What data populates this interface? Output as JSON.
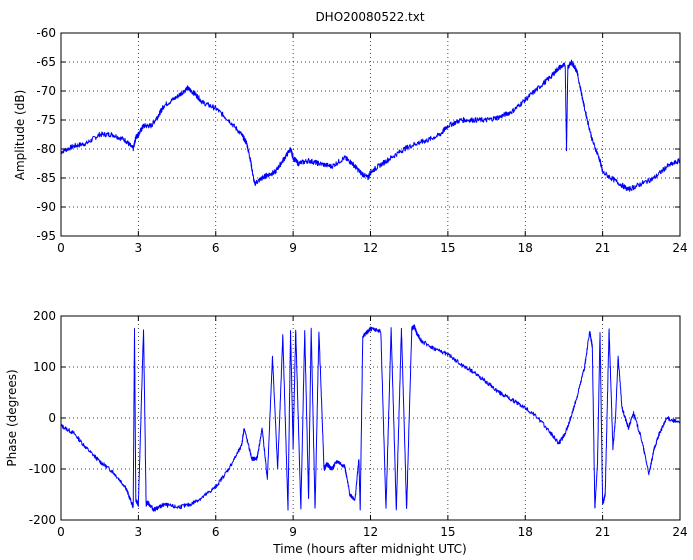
{
  "chart_data": [
    {
      "type": "line",
      "title": "DHO20080522.txt",
      "xlabel": "",
      "ylabel": "Amplitude (dB)",
      "xlim": [
        0,
        24
      ],
      "ylim": [
        -95,
        -60
      ],
      "xticks": [
        "0",
        "3",
        "6",
        "9",
        "12",
        "15",
        "18",
        "21",
        "24"
      ],
      "yticks": [
        "-60",
        "-65",
        "-70",
        "-75",
        "-80",
        "-85",
        "-90",
        "-95"
      ],
      "grid": true,
      "color": "#0000FF",
      "x": [
        0,
        0.5,
        1.0,
        1.5,
        2.0,
        2.5,
        2.8,
        2.9,
        3.0,
        3.2,
        3.5,
        3.8,
        4.0,
        4.5,
        4.9,
        5.2,
        5.5,
        6.0,
        6.5,
        7.0,
        7.2,
        7.35,
        7.5,
        7.8,
        8.0,
        8.3,
        8.6,
        8.9,
        9.0,
        9.2,
        9.6,
        10.0,
        10.5,
        11.0,
        11.3,
        11.6,
        11.9,
        12.0,
        12.3,
        12.8,
        13.3,
        13.8,
        14.2,
        14.7,
        15.0,
        15.5,
        16.0,
        16.5,
        17.0,
        17.5,
        18.0,
        18.5,
        19.0,
        19.3,
        19.55,
        19.6,
        19.65,
        19.8,
        20.0,
        20.3,
        20.6,
        20.9,
        21.0,
        21.5,
        22.0,
        22.5,
        23.0,
        23.5,
        24.0
      ],
      "y": [
        -80.5,
        -79.5,
        -79.0,
        -77.5,
        -77.5,
        -78.5,
        -80.0,
        -78.0,
        -77.5,
        -76.0,
        -76.0,
        -74.0,
        -72.5,
        -71.0,
        -69.5,
        -70.5,
        -72.0,
        -73.0,
        -75.0,
        -77.5,
        -79.0,
        -82.0,
        -86.0,
        -85.0,
        -84.5,
        -84.0,
        -82.0,
        -80.0,
        -81.5,
        -82.5,
        -82.0,
        -82.5,
        -83.0,
        -81.5,
        -82.5,
        -84.0,
        -85.0,
        -84.0,
        -83.0,
        -81.5,
        -80.0,
        -79.0,
        -78.5,
        -77.5,
        -76.0,
        -75.0,
        -75.0,
        -75.0,
        -74.5,
        -73.5,
        -71.5,
        -69.5,
        -67.5,
        -66.0,
        -65.5,
        -80.5,
        -66.0,
        -65.0,
        -66.5,
        -73.0,
        -78.5,
        -82.0,
        -84.0,
        -85.5,
        -87.0,
        -86.0,
        -85.0,
        -83.0,
        -82.0
      ]
    },
    {
      "type": "line",
      "title": "",
      "xlabel": "Time (hours after midnight UTC)",
      "ylabel": "Phase (degrees)",
      "xlim": [
        0,
        24
      ],
      "ylim": [
        -200,
        200
      ],
      "xticks": [
        "0",
        "3",
        "6",
        "9",
        "12",
        "15",
        "18",
        "21",
        "24"
      ],
      "yticks": [
        "200",
        "100",
        "0",
        "-100",
        "-200"
      ],
      "grid": true,
      "color": "#0000FF",
      "x": [
        0,
        0.5,
        1.0,
        1.5,
        2.0,
        2.5,
        2.8,
        2.85,
        2.9,
        3.0,
        3.2,
        3.3,
        3.35,
        3.6,
        3.8,
        4.0,
        4.5,
        5.0,
        5.5,
        6.0,
        6.5,
        7.0,
        7.1,
        7.4,
        7.6,
        7.8,
        8.0,
        8.2,
        8.4,
        8.6,
        8.8,
        8.9,
        9.0,
        9.1,
        9.3,
        9.45,
        9.6,
        9.7,
        9.85,
        10.0,
        10.2,
        10.3,
        10.5,
        10.7,
        11.0,
        11.2,
        11.4,
        11.55,
        11.6,
        11.7,
        11.9,
        12.0,
        12.4,
        12.6,
        12.8,
        13.0,
        13.2,
        13.4,
        13.6,
        13.7,
        13.8,
        14.0,
        14.5,
        15.0,
        15.5,
        16.0,
        16.5,
        17.0,
        17.5,
        18.0,
        18.5,
        19.0,
        19.3,
        19.5,
        19.7,
        20.0,
        20.3,
        20.5,
        20.6,
        20.7,
        20.8,
        20.9,
        21.0,
        21.1,
        21.25,
        21.4,
        21.5,
        21.6,
        21.75,
        22.0,
        22.2,
        22.5,
        22.8,
        23.0,
        23.2,
        23.5,
        24.0
      ],
      "y": [
        -15,
        -30,
        -60,
        -85,
        -105,
        -135,
        -175,
        175,
        -160,
        -170,
        175,
        -170,
        -165,
        -180,
        -175,
        -170,
        -175,
        -170,
        -155,
        -135,
        -100,
        -55,
        -20,
        -80,
        -80,
        -20,
        -120,
        120,
        -100,
        160,
        -180,
        170,
        -60,
        175,
        -180,
        170,
        -160,
        175,
        -180,
        170,
        -100,
        -90,
        -100,
        -85,
        -95,
        -150,
        -160,
        -80,
        -180,
        160,
        170,
        175,
        170,
        -180,
        175,
        -180,
        175,
        -180,
        175,
        180,
        165,
        150,
        135,
        125,
        105,
        90,
        70,
        50,
        35,
        20,
        0,
        -30,
        -50,
        -35,
        -10,
        40,
        100,
        170,
        140,
        -180,
        -90,
        170,
        -170,
        -150,
        175,
        -60,
        0,
        120,
        20,
        -20,
        10,
        -40,
        -110,
        -60,
        -30,
        0,
        -10
      ]
    }
  ]
}
